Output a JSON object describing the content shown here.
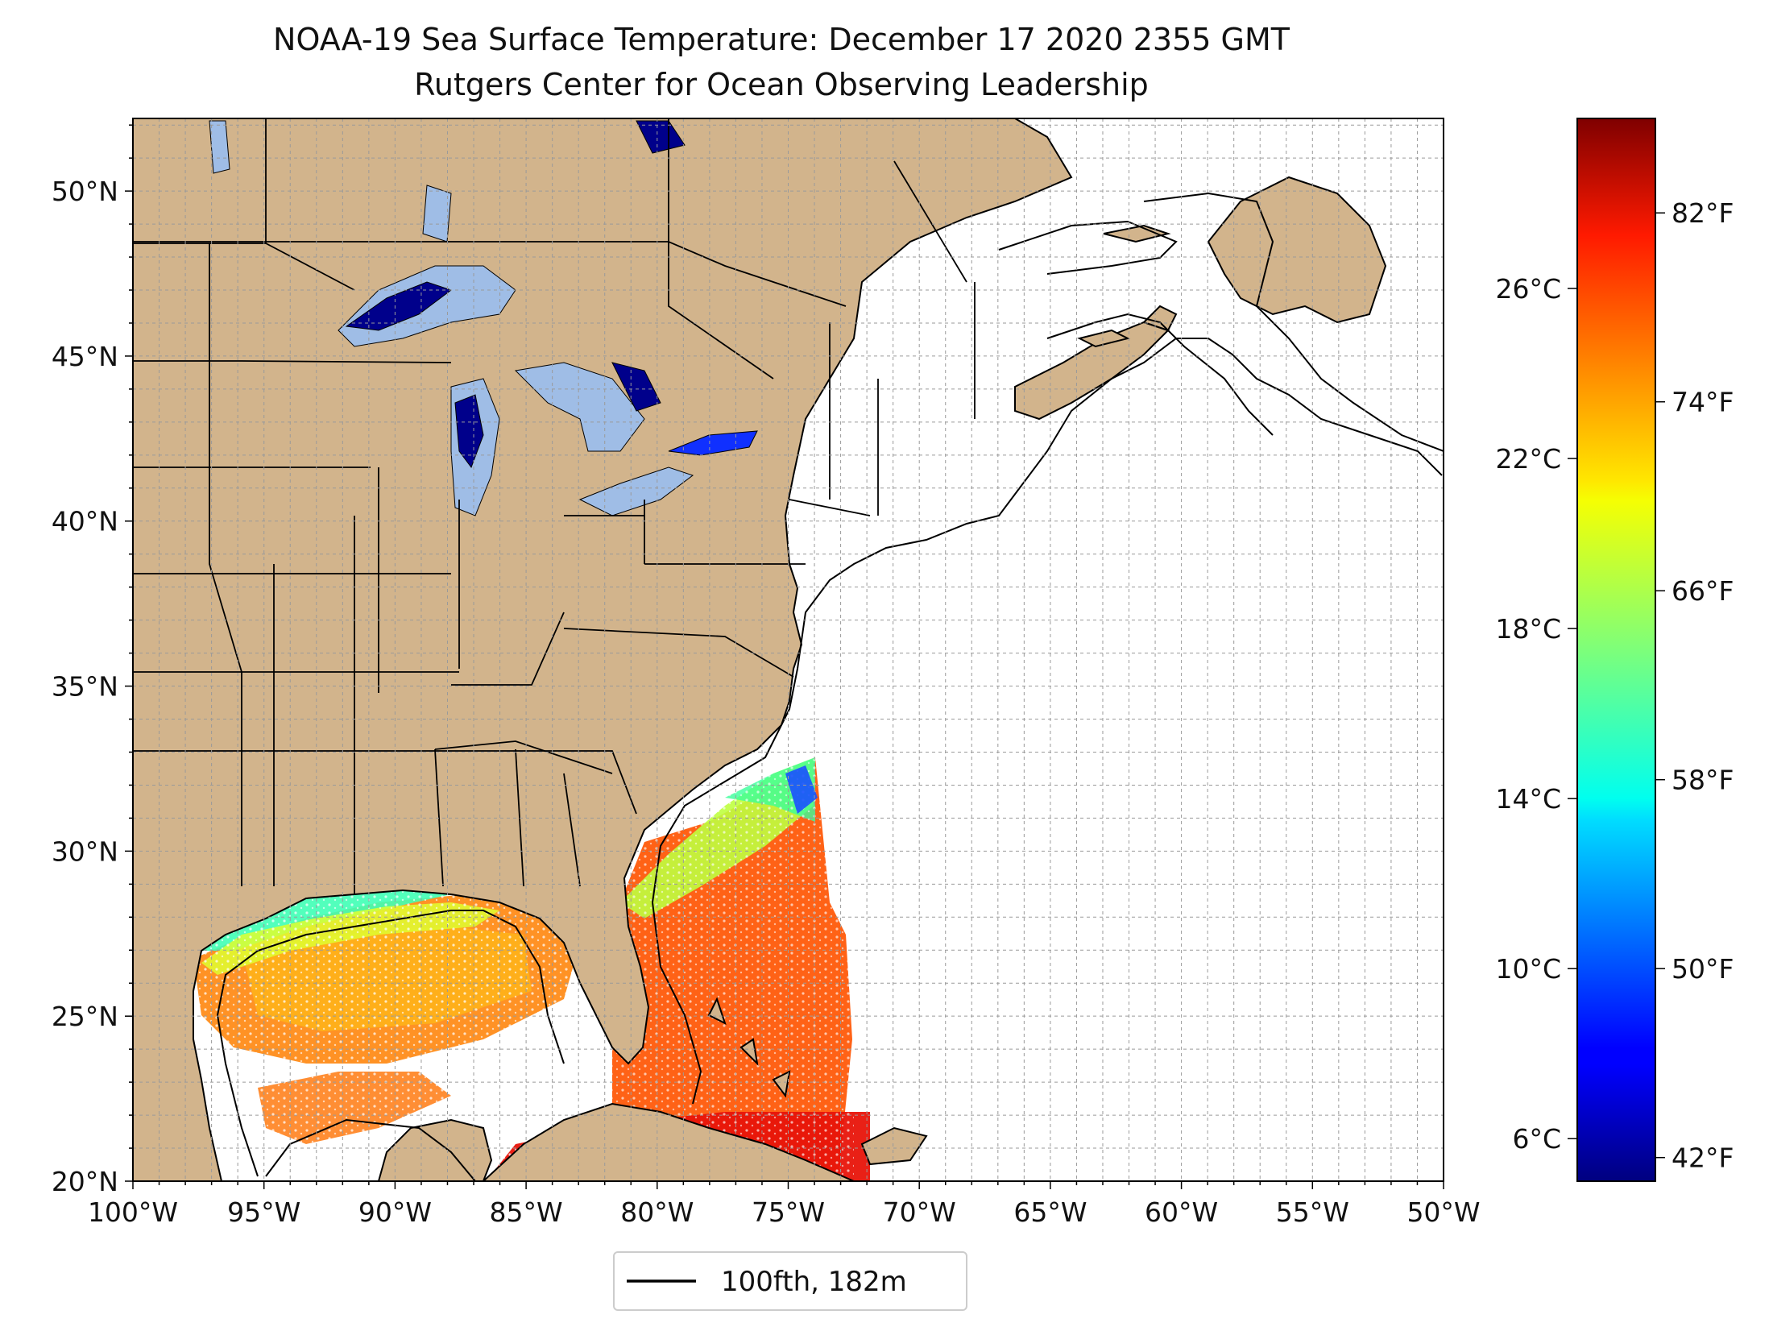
{
  "title": {
    "line1": "NOAA-19 Sea Surface Temperature: December 17 2020 2355 GMT",
    "line2": "Rutgers Center for Ocean Observing Leadership"
  },
  "map": {
    "lon_range": [
      -100,
      -50
    ],
    "lat_range": [
      20,
      52.2
    ],
    "lon_ticks": [
      {
        "value": -100,
        "label": "100°W"
      },
      {
        "value": -95,
        "label": "95°W"
      },
      {
        "value": -90,
        "label": "90°W"
      },
      {
        "value": -85,
        "label": "85°W"
      },
      {
        "value": -80,
        "label": "80°W"
      },
      {
        "value": -75,
        "label": "75°W"
      },
      {
        "value": -70,
        "label": "70°W"
      },
      {
        "value": -65,
        "label": "65°W"
      },
      {
        "value": -60,
        "label": "60°W"
      },
      {
        "value": -55,
        "label": "55°W"
      },
      {
        "value": -50,
        "label": "50°W"
      }
    ],
    "lat_ticks": [
      {
        "value": 20,
        "label": "20°N"
      },
      {
        "value": 25,
        "label": "25°N"
      },
      {
        "value": 30,
        "label": "30°N"
      },
      {
        "value": 35,
        "label": "35°N"
      },
      {
        "value": 40,
        "label": "40°N"
      },
      {
        "value": 45,
        "label": "45°N"
      },
      {
        "value": 50,
        "label": "50°N"
      }
    ],
    "gridlines": true,
    "land_color": "#d2b48c",
    "lake_color": "#9fbde6",
    "ocean_color": "#ffffff"
  },
  "colorbar": {
    "colormap": "jet",
    "range_c": [
      5,
      30
    ],
    "celsius_ticks": [
      {
        "value": 6,
        "label": "6°C"
      },
      {
        "value": 10,
        "label": "10°C"
      },
      {
        "value": 14,
        "label": "14°C"
      },
      {
        "value": 18,
        "label": "18°C"
      },
      {
        "value": 22,
        "label": "22°C"
      },
      {
        "value": 26,
        "label": "26°C"
      }
    ],
    "fahrenheit_ticks": [
      {
        "value": 42,
        "label": "42°F"
      },
      {
        "value": 50,
        "label": "50°F"
      },
      {
        "value": 58,
        "label": "58°F"
      },
      {
        "value": 66,
        "label": "66°F"
      },
      {
        "value": 74,
        "label": "74°F"
      },
      {
        "value": 82,
        "label": "82°F"
      }
    ]
  },
  "legend": {
    "entries": [
      {
        "label": "100fth, 182m",
        "color": "#000000"
      }
    ],
    "placement": "bottom-center"
  }
}
